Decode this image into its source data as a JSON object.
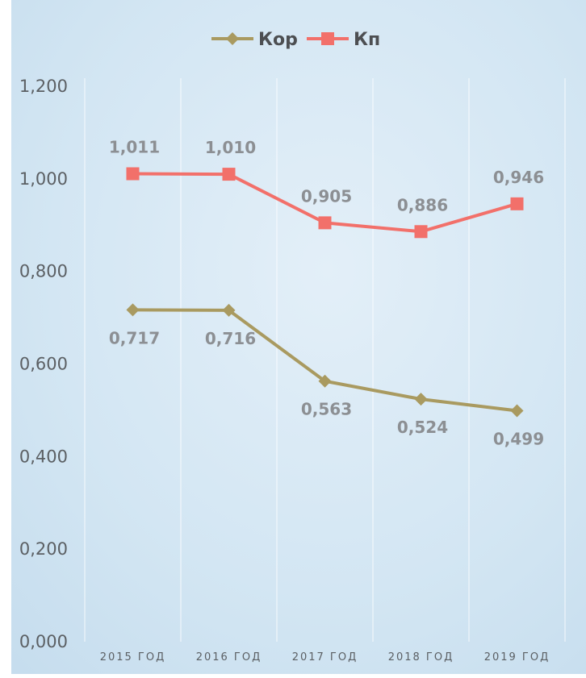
{
  "chart_data": {
    "type": "line",
    "categories": [
      "2015 ГОД",
      "2016 ГОД",
      "2017 ГОД",
      "2018 ГОД",
      "2019 ГОД"
    ],
    "ylim": [
      0,
      1.2
    ],
    "yticks": [
      "0,000",
      "0,200",
      "0,400",
      "0,600",
      "0,800",
      "1,000",
      "1,200"
    ],
    "ytick_values": [
      0,
      0.2,
      0.4,
      0.6,
      0.8,
      1.0,
      1.2
    ],
    "grid": "vertical",
    "legend": "top-center",
    "series": [
      {
        "name": "Кор",
        "values": [
          0.717,
          0.716,
          0.563,
          0.524,
          0.499
        ],
        "labels": [
          "0,717",
          "0,716",
          "0,563",
          "0,524",
          "0,499"
        ],
        "label_position": "below",
        "color": "#a99a60",
        "marker": "diamond"
      },
      {
        "name": "Кп",
        "values": [
          1.011,
          1.01,
          0.905,
          0.886,
          0.946
        ],
        "labels": [
          "1,011",
          "1,010",
          "0,905",
          "0,886",
          "0,946"
        ],
        "label_position": "above",
        "color": "#f2706a",
        "marker": "square"
      }
    ],
    "plot_background": "#d2e6f3"
  }
}
